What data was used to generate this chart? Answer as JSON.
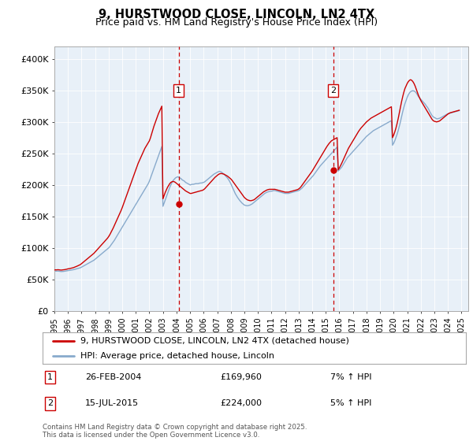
{
  "title": "9, HURSTWOOD CLOSE, LINCOLN, LN2 4TX",
  "subtitle": "Price paid vs. HM Land Registry's House Price Index (HPI)",
  "ylim": [
    0,
    420000
  ],
  "yticks": [
    0,
    50000,
    100000,
    150000,
    200000,
    250000,
    300000,
    350000,
    400000
  ],
  "ytick_labels": [
    "£0",
    "£50K",
    "£100K",
    "£150K",
    "£200K",
    "£250K",
    "£300K",
    "£350K",
    "£400K"
  ],
  "xlim_start": 1995.0,
  "xlim_end": 2025.5,
  "background_color": "#e8f0f8",
  "line_color_property": "#cc0000",
  "line_color_hpi": "#88aacc",
  "marker1_date": 2004.15,
  "marker1_value": 169960,
  "marker2_date": 2015.54,
  "marker2_value": 224000,
  "legend_label_property": "9, HURSTWOOD CLOSE, LINCOLN, LN2 4TX (detached house)",
  "legend_label_hpi": "HPI: Average price, detached house, Lincoln",
  "annotation1_date": "26-FEB-2004",
  "annotation1_price": "£169,960",
  "annotation1_hpi": "7% ↑ HPI",
  "annotation2_date": "15-JUL-2015",
  "annotation2_price": "£224,000",
  "annotation2_hpi": "5% ↑ HPI",
  "footnote": "Contains HM Land Registry data © Crown copyright and database right 2025.\nThis data is licensed under the Open Government Licence v3.0.",
  "hpi_months": [
    1995.0,
    1995.083,
    1995.167,
    1995.25,
    1995.333,
    1995.417,
    1995.5,
    1995.583,
    1995.667,
    1995.75,
    1995.833,
    1995.917,
    1996.0,
    1996.083,
    1996.167,
    1996.25,
    1996.333,
    1996.417,
    1996.5,
    1996.583,
    1996.667,
    1996.75,
    1996.833,
    1996.917,
    1997.0,
    1997.083,
    1997.167,
    1997.25,
    1997.333,
    1997.417,
    1997.5,
    1997.583,
    1997.667,
    1997.75,
    1997.833,
    1997.917,
    1998.0,
    1998.083,
    1998.167,
    1998.25,
    1998.333,
    1998.417,
    1998.5,
    1998.583,
    1998.667,
    1998.75,
    1998.833,
    1998.917,
    1999.0,
    1999.083,
    1999.167,
    1999.25,
    1999.333,
    1999.417,
    1999.5,
    1999.583,
    1999.667,
    1999.75,
    1999.833,
    1999.917,
    2000.0,
    2000.083,
    2000.167,
    2000.25,
    2000.333,
    2000.417,
    2000.5,
    2000.583,
    2000.667,
    2000.75,
    2000.833,
    2000.917,
    2001.0,
    2001.083,
    2001.167,
    2001.25,
    2001.333,
    2001.417,
    2001.5,
    2001.583,
    2001.667,
    2001.75,
    2001.833,
    2001.917,
    2002.0,
    2002.083,
    2002.167,
    2002.25,
    2002.333,
    2002.417,
    2002.5,
    2002.583,
    2002.667,
    2002.75,
    2002.833,
    2002.917,
    2003.0,
    2003.083,
    2003.167,
    2003.25,
    2003.333,
    2003.417,
    2003.5,
    2003.583,
    2003.667,
    2003.75,
    2003.833,
    2003.917,
    2004.0,
    2004.083,
    2004.167,
    2004.25,
    2004.333,
    2004.417,
    2004.5,
    2004.583,
    2004.667,
    2004.75,
    2004.833,
    2004.917,
    2005.0,
    2005.083,
    2005.167,
    2005.25,
    2005.333,
    2005.417,
    2005.5,
    2005.583,
    2005.667,
    2005.75,
    2005.833,
    2005.917,
    2006.0,
    2006.083,
    2006.167,
    2006.25,
    2006.333,
    2006.417,
    2006.5,
    2006.583,
    2006.667,
    2006.75,
    2006.833,
    2006.917,
    2007.0,
    2007.083,
    2007.167,
    2007.25,
    2007.333,
    2007.417,
    2007.5,
    2007.583,
    2007.667,
    2007.75,
    2007.833,
    2007.917,
    2008.0,
    2008.083,
    2008.167,
    2008.25,
    2008.333,
    2008.417,
    2008.5,
    2008.583,
    2008.667,
    2008.75,
    2008.833,
    2008.917,
    2009.0,
    2009.083,
    2009.167,
    2009.25,
    2009.333,
    2009.417,
    2009.5,
    2009.583,
    2009.667,
    2009.75,
    2009.833,
    2009.917,
    2010.0,
    2010.083,
    2010.167,
    2010.25,
    2010.333,
    2010.417,
    2010.5,
    2010.583,
    2010.667,
    2010.75,
    2010.833,
    2010.917,
    2011.0,
    2011.083,
    2011.167,
    2011.25,
    2011.333,
    2011.417,
    2011.5,
    2011.583,
    2011.667,
    2011.75,
    2011.833,
    2011.917,
    2012.0,
    2012.083,
    2012.167,
    2012.25,
    2012.333,
    2012.417,
    2012.5,
    2012.583,
    2012.667,
    2012.75,
    2012.833,
    2012.917,
    2013.0,
    2013.083,
    2013.167,
    2013.25,
    2013.333,
    2013.417,
    2013.5,
    2013.583,
    2013.667,
    2013.75,
    2013.833,
    2013.917,
    2014.0,
    2014.083,
    2014.167,
    2014.25,
    2014.333,
    2014.417,
    2014.5,
    2014.583,
    2014.667,
    2014.75,
    2014.833,
    2014.917,
    2015.0,
    2015.083,
    2015.167,
    2015.25,
    2015.333,
    2015.417,
    2015.5,
    2015.583,
    2015.667,
    2015.75,
    2015.833,
    2015.917,
    2016.0,
    2016.083,
    2016.167,
    2016.25,
    2016.333,
    2016.417,
    2016.5,
    2016.583,
    2016.667,
    2016.75,
    2016.833,
    2016.917,
    2017.0,
    2017.083,
    2017.167,
    2017.25,
    2017.333,
    2017.417,
    2017.5,
    2017.583,
    2017.667,
    2017.75,
    2017.833,
    2017.917,
    2018.0,
    2018.083,
    2018.167,
    2018.25,
    2018.333,
    2018.417,
    2018.5,
    2018.583,
    2018.667,
    2018.75,
    2018.833,
    2018.917,
    2019.0,
    2019.083,
    2019.167,
    2019.25,
    2019.333,
    2019.417,
    2019.5,
    2019.583,
    2019.667,
    2019.75,
    2019.833,
    2019.917,
    2020.0,
    2020.083,
    2020.167,
    2020.25,
    2020.333,
    2020.417,
    2020.5,
    2020.583,
    2020.667,
    2020.75,
    2020.833,
    2020.917,
    2021.0,
    2021.083,
    2021.167,
    2021.25,
    2021.333,
    2021.417,
    2021.5,
    2021.583,
    2021.667,
    2021.75,
    2021.833,
    2021.917,
    2022.0,
    2022.083,
    2022.167,
    2022.25,
    2022.333,
    2022.417,
    2022.5,
    2022.583,
    2022.667,
    2022.75,
    2022.833,
    2022.917,
    2023.0,
    2023.083,
    2023.167,
    2023.25,
    2023.333,
    2023.417,
    2023.5,
    2023.583,
    2023.667,
    2023.75,
    2023.833,
    2023.917,
    2024.0,
    2024.083,
    2024.167,
    2024.25,
    2024.333,
    2024.417,
    2024.5,
    2024.583,
    2024.667,
    2024.75,
    2024.833,
    2024.917
  ],
  "hpi_values": [
    63000,
    63200,
    63100,
    63300,
    63000,
    62800,
    62500,
    62600,
    62700,
    63000,
    63200,
    63500,
    64000,
    64200,
    64500,
    64800,
    65200,
    65500,
    66000,
    66500,
    67000,
    67500,
    68000,
    68500,
    69500,
    70500,
    71500,
    72500,
    73500,
    74500,
    75500,
    76500,
    77500,
    78500,
    79500,
    80500,
    82000,
    83500,
    85000,
    86500,
    88000,
    89500,
    91000,
    92500,
    94000,
    95500,
    97000,
    98500,
    100000,
    102000,
    104500,
    107000,
    109500,
    112000,
    115000,
    118000,
    121000,
    124000,
    127000,
    130000,
    133000,
    136000,
    139000,
    142000,
    145000,
    148000,
    151000,
    154000,
    157000,
    160000,
    163000,
    166000,
    169000,
    172000,
    175000,
    178000,
    181000,
    184000,
    187000,
    190000,
    193000,
    196000,
    199000,
    202000,
    206000,
    211000,
    216000,
    221000,
    226000,
    231000,
    236000,
    241000,
    246000,
    251000,
    256000,
    261000,
    166000,
    171000,
    176000,
    181000,
    186000,
    191000,
    196000,
    200000,
    204000,
    207000,
    209000,
    211000,
    212000,
    213000,
    212000,
    211000,
    210000,
    208000,
    207000,
    206000,
    204000,
    203000,
    202000,
    201000,
    200000,
    200500,
    201000,
    201000,
    201500,
    202000,
    202000,
    202000,
    202500,
    203000,
    203000,
    203500,
    204000,
    205000,
    206500,
    208000,
    209500,
    211000,
    212500,
    214000,
    215500,
    217000,
    218000,
    219000,
    220000,
    221000,
    221500,
    221000,
    220000,
    218500,
    217000,
    215000,
    213000,
    211000,
    208500,
    205500,
    202000,
    198000,
    194000,
    190000,
    186000,
    183000,
    180000,
    177500,
    175000,
    173000,
    171000,
    169500,
    168000,
    167500,
    167000,
    167000,
    167500,
    168000,
    169000,
    170000,
    171500,
    173000,
    174500,
    176000,
    177500,
    179000,
    180500,
    182000,
    183500,
    185000,
    186500,
    187500,
    188500,
    189000,
    189500,
    190000,
    190000,
    190500,
    191000,
    191000,
    190500,
    190000,
    189500,
    189000,
    188500,
    188000,
    187500,
    187000,
    186500,
    186500,
    186500,
    186500,
    187000,
    187500,
    188000,
    188500,
    189000,
    189500,
    190000,
    190500,
    191000,
    192000,
    193500,
    195000,
    197000,
    199000,
    201000,
    203000,
    205000,
    207000,
    209000,
    211000,
    213000,
    215000,
    217500,
    220000,
    222500,
    225000,
    227500,
    230000,
    232000,
    234000,
    236000,
    238000,
    240000,
    242000,
    244000,
    246000,
    248000,
    250000,
    252000,
    254000,
    256000,
    258000,
    260000,
    222000,
    224000,
    226000,
    228000,
    231000,
    234000,
    237000,
    240000,
    243000,
    245000,
    247000,
    249000,
    251000,
    253000,
    255000,
    257000,
    259000,
    261000,
    263000,
    265000,
    267000,
    269000,
    271000,
    273000,
    275000,
    277000,
    278500,
    280000,
    281500,
    283000,
    284500,
    286000,
    287000,
    288000,
    289000,
    290000,
    291000,
    292000,
    293000,
    294000,
    295000,
    296000,
    297000,
    298000,
    299000,
    300000,
    301000,
    302000,
    263000,
    266000,
    270000,
    275000,
    280000,
    286000,
    293000,
    300000,
    308000,
    316000,
    323000,
    329000,
    334000,
    339000,
    343000,
    346000,
    348000,
    349000,
    349500,
    349000,
    348000,
    346000,
    343000,
    340000,
    338000,
    336000,
    334000,
    332000,
    330000,
    328000,
    325000,
    323000,
    320000,
    316000,
    313000,
    310000,
    308000,
    307000,
    306000,
    305000,
    305000,
    305500,
    306000,
    307000,
    308000,
    309000,
    310000,
    311000,
    312000,
    313000,
    313500,
    314000,
    314500,
    315000,
    315500,
    316000,
    316500,
    317000,
    317500,
    318000
  ],
  "prop_months": [
    1995.0,
    1995.083,
    1995.167,
    1995.25,
    1995.333,
    1995.417,
    1995.5,
    1995.583,
    1995.667,
    1995.75,
    1995.833,
    1995.917,
    1996.0,
    1996.083,
    1996.167,
    1996.25,
    1996.333,
    1996.417,
    1996.5,
    1996.583,
    1996.667,
    1996.75,
    1996.833,
    1996.917,
    1997.0,
    1997.083,
    1997.167,
    1997.25,
    1997.333,
    1997.417,
    1997.5,
    1997.583,
    1997.667,
    1997.75,
    1997.833,
    1997.917,
    1998.0,
    1998.083,
    1998.167,
    1998.25,
    1998.333,
    1998.417,
    1998.5,
    1998.583,
    1998.667,
    1998.75,
    1998.833,
    1998.917,
    1999.0,
    1999.083,
    1999.167,
    1999.25,
    1999.333,
    1999.417,
    1999.5,
    1999.583,
    1999.667,
    1999.75,
    1999.833,
    1999.917,
    2000.0,
    2000.083,
    2000.167,
    2000.25,
    2000.333,
    2000.417,
    2000.5,
    2000.583,
    2000.667,
    2000.75,
    2000.833,
    2000.917,
    2001.0,
    2001.083,
    2001.167,
    2001.25,
    2001.333,
    2001.417,
    2001.5,
    2001.583,
    2001.667,
    2001.75,
    2001.833,
    2001.917,
    2002.0,
    2002.083,
    2002.167,
    2002.25,
    2002.333,
    2002.417,
    2002.5,
    2002.583,
    2002.667,
    2002.75,
    2002.833,
    2002.917,
    2003.0,
    2003.083,
    2003.167,
    2003.25,
    2003.333,
    2003.417,
    2003.5,
    2003.583,
    2003.667,
    2003.75,
    2003.833,
    2003.917,
    2004.0,
    2004.083,
    2004.167,
    2004.25,
    2004.333,
    2004.417,
    2004.5,
    2004.583,
    2004.667,
    2004.75,
    2004.833,
    2004.917,
    2005.0,
    2005.083,
    2005.167,
    2005.25,
    2005.333,
    2005.417,
    2005.5,
    2005.583,
    2005.667,
    2005.75,
    2005.833,
    2005.917,
    2006.0,
    2006.083,
    2006.167,
    2006.25,
    2006.333,
    2006.417,
    2006.5,
    2006.583,
    2006.667,
    2006.75,
    2006.833,
    2006.917,
    2007.0,
    2007.083,
    2007.167,
    2007.25,
    2007.333,
    2007.417,
    2007.5,
    2007.583,
    2007.667,
    2007.75,
    2007.833,
    2007.917,
    2008.0,
    2008.083,
    2008.167,
    2008.25,
    2008.333,
    2008.417,
    2008.5,
    2008.583,
    2008.667,
    2008.75,
    2008.833,
    2008.917,
    2009.0,
    2009.083,
    2009.167,
    2009.25,
    2009.333,
    2009.417,
    2009.5,
    2009.583,
    2009.667,
    2009.75,
    2009.833,
    2009.917,
    2010.0,
    2010.083,
    2010.167,
    2010.25,
    2010.333,
    2010.417,
    2010.5,
    2010.583,
    2010.667,
    2010.75,
    2010.833,
    2010.917,
    2011.0,
    2011.083,
    2011.167,
    2011.25,
    2011.333,
    2011.417,
    2011.5,
    2011.583,
    2011.667,
    2011.75,
    2011.833,
    2011.917,
    2012.0,
    2012.083,
    2012.167,
    2012.25,
    2012.333,
    2012.417,
    2012.5,
    2012.583,
    2012.667,
    2012.75,
    2012.833,
    2012.917,
    2013.0,
    2013.083,
    2013.167,
    2013.25,
    2013.333,
    2013.417,
    2013.5,
    2013.583,
    2013.667,
    2013.75,
    2013.833,
    2013.917,
    2014.0,
    2014.083,
    2014.167,
    2014.25,
    2014.333,
    2014.417,
    2014.5,
    2014.583,
    2014.667,
    2014.75,
    2014.833,
    2014.917,
    2015.0,
    2015.083,
    2015.167,
    2015.25,
    2015.333,
    2015.417,
    2015.5,
    2015.583,
    2015.667,
    2015.75,
    2015.833,
    2015.917,
    2016.0,
    2016.083,
    2016.167,
    2016.25,
    2016.333,
    2016.417,
    2016.5,
    2016.583,
    2016.667,
    2016.75,
    2016.833,
    2016.917,
    2017.0,
    2017.083,
    2017.167,
    2017.25,
    2017.333,
    2017.417,
    2017.5,
    2017.583,
    2017.667,
    2017.75,
    2017.833,
    2017.917,
    2018.0,
    2018.083,
    2018.167,
    2018.25,
    2018.333,
    2018.417,
    2018.5,
    2018.583,
    2018.667,
    2018.75,
    2018.833,
    2018.917,
    2019.0,
    2019.083,
    2019.167,
    2019.25,
    2019.333,
    2019.417,
    2019.5,
    2019.583,
    2019.667,
    2019.75,
    2019.833,
    2019.917,
    2020.0,
    2020.083,
    2020.167,
    2020.25,
    2020.333,
    2020.417,
    2020.5,
    2020.583,
    2020.667,
    2020.75,
    2020.833,
    2020.917,
    2021.0,
    2021.083,
    2021.167,
    2021.25,
    2021.333,
    2021.417,
    2021.5,
    2021.583,
    2021.667,
    2021.75,
    2021.833,
    2021.917,
    2022.0,
    2022.083,
    2022.167,
    2022.25,
    2022.333,
    2022.417,
    2022.5,
    2022.583,
    2022.667,
    2022.75,
    2022.833,
    2022.917,
    2023.0,
    2023.083,
    2023.167,
    2023.25,
    2023.333,
    2023.417,
    2023.5,
    2023.583,
    2023.667,
    2023.75,
    2023.833,
    2023.917,
    2024.0,
    2024.083,
    2024.167,
    2024.25,
    2024.333,
    2024.417,
    2024.5,
    2024.583,
    2024.667,
    2024.75,
    2024.833,
    2024.917
  ],
  "prop_values": [
    65000,
    65200,
    65100,
    65400,
    65200,
    65000,
    64800,
    65000,
    65200,
    65500,
    65800,
    66200,
    66800,
    67000,
    67400,
    67800,
    68300,
    68800,
    69500,
    70200,
    71000,
    71800,
    72700,
    73600,
    75000,
    76500,
    78000,
    79500,
    81000,
    82500,
    84000,
    85500,
    87000,
    88500,
    90000,
    91500,
    93500,
    95500,
    97500,
    99500,
    101500,
    103500,
    105500,
    107500,
    109500,
    111500,
    113500,
    115500,
    118000,
    121000,
    124500,
    128000,
    131500,
    135500,
    139500,
    143500,
    147500,
    151500,
    155500,
    159500,
    164000,
    169000,
    174000,
    179000,
    184000,
    189000,
    194000,
    199000,
    204000,
    209000,
    214000,
    219000,
    224000,
    229000,
    234000,
    238000,
    242000,
    246000,
    250000,
    254000,
    258000,
    261000,
    264000,
    267000,
    270000,
    275000,
    281000,
    287000,
    293000,
    298000,
    303000,
    308000,
    313000,
    317000,
    321000,
    325000,
    178000,
    183000,
    188000,
    192000,
    196000,
    199000,
    202000,
    204000,
    205000,
    205500,
    205000,
    204000,
    202500,
    201000,
    199500,
    198000,
    196500,
    195000,
    193500,
    192000,
    190500,
    189500,
    188500,
    187500,
    186500,
    186500,
    187000,
    187500,
    188000,
    188500,
    189000,
    189500,
    190000,
    190500,
    191000,
    191500,
    192500,
    194000,
    196000,
    198000,
    200000,
    202000,
    204000,
    206000,
    208000,
    210000,
    212000,
    213500,
    215000,
    216500,
    217500,
    218000,
    218000,
    217500,
    217000,
    216000,
    215000,
    214000,
    212500,
    211000,
    209500,
    207500,
    205000,
    202500,
    200000,
    197500,
    195000,
    192500,
    190000,
    187500,
    185000,
    182500,
    180000,
    178500,
    177000,
    176000,
    175500,
    175000,
    175000,
    175500,
    176000,
    177000,
    178500,
    180000,
    181500,
    183000,
    184500,
    186000,
    187500,
    189000,
    190000,
    191000,
    192000,
    192500,
    193000,
    193000,
    193000,
    193000,
    193000,
    193000,
    192500,
    192000,
    191500,
    191000,
    190500,
    190000,
    189500,
    189000,
    188500,
    188500,
    188500,
    188500,
    189000,
    189500,
    190000,
    190500,
    191000,
    191500,
    192000,
    192500,
    193500,
    195000,
    197000,
    199500,
    202000,
    204500,
    207000,
    209500,
    212000,
    214500,
    217000,
    219500,
    222000,
    225000,
    228000,
    231000,
    234000,
    237000,
    240000,
    243000,
    246000,
    249000,
    252000,
    255000,
    258000,
    261000,
    263500,
    266000,
    268000,
    270000,
    271000,
    272000,
    273000,
    274000,
    275000,
    224000,
    227000,
    230500,
    234000,
    238000,
    242000,
    246000,
    250000,
    254000,
    258000,
    261000,
    264000,
    267000,
    270000,
    273000,
    276000,
    279000,
    282000,
    285000,
    287500,
    290000,
    292000,
    294000,
    296000,
    298000,
    300000,
    301500,
    303000,
    304500,
    306000,
    307000,
    308000,
    309000,
    310000,
    311000,
    312000,
    313000,
    314000,
    315000,
    316000,
    317000,
    318000,
    319000,
    320000,
    321000,
    322000,
    323000,
    324000,
    275000,
    279000,
    284000,
    290000,
    297000,
    305000,
    314000,
    323000,
    332000,
    340000,
    347000,
    353000,
    357000,
    361000,
    364000,
    366000,
    367000,
    366000,
    364000,
    361000,
    357000,
    352000,
    347000,
    342000,
    338000,
    334000,
    331000,
    328000,
    325000,
    322000,
    319000,
    316000,
    313000,
    310000,
    307000,
    304000,
    302000,
    301000,
    300500,
    300000,
    300500,
    301000,
    302000,
    303500,
    305000,
    306500,
    308000,
    309500,
    311000,
    312500,
    313500,
    314500,
    315000,
    315500,
    316000,
    316500,
    317000,
    317500,
    318000,
    318500
  ]
}
